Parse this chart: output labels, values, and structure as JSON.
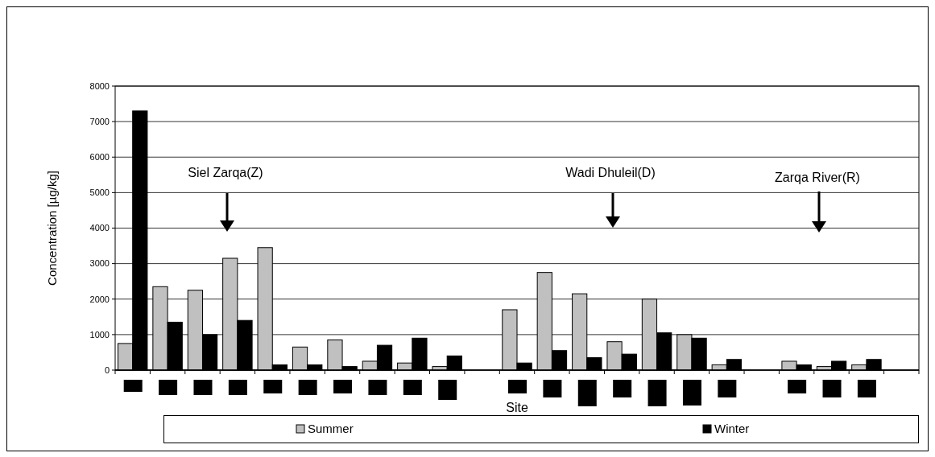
{
  "chart_data": {
    "type": "bar",
    "xlabel": "Site",
    "ylabel": "Concentration [µg/kg]",
    "categories": [
      null,
      null,
      null,
      null,
      null,
      null,
      null,
      null,
      null,
      null,
      null,
      null,
      null,
      null,
      null,
      null,
      null,
      null,
      null,
      null,
      null,
      null,
      null
    ],
    "series": [
      {
        "name": "Summer",
        "color": "#c0c0c0",
        "values": [
          750,
          2350,
          2250,
          3150,
          3450,
          650,
          850,
          250,
          200,
          100,
          null,
          1700,
          2750,
          2150,
          800,
          2000,
          1000,
          150,
          null,
          250,
          100,
          150,
          null
        ]
      },
      {
        "name": "Winter",
        "color": "#000000",
        "values": [
          7300,
          1350,
          1000,
          1400,
          150,
          150,
          100,
          700,
          900,
          400,
          null,
          200,
          550,
          350,
          450,
          1050,
          900,
          300,
          null,
          150,
          250,
          300,
          null
        ]
      }
    ],
    "ylim": [
      0,
      8000
    ],
    "yticks": [
      0,
      1000,
      2000,
      3000,
      4000,
      5000,
      6000,
      7000,
      8000
    ],
    "grid": "y",
    "legend": "bottom",
    "annotations": [
      "Siel Zarqa(Z)",
      "Wadi Dhuleil(D)",
      "Zarqa River(R)"
    ]
  }
}
